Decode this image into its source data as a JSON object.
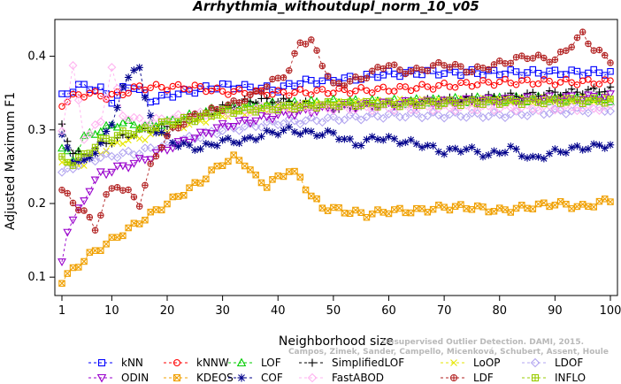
{
  "chart_data": {
    "type": "scatter",
    "title": "Arrhythmia_withoutdupl_norm_10_v05",
    "xlabel": "Neighborhood size",
    "ylabel": "Adjusted Maximum F1",
    "xlim": [
      1,
      100
    ],
    "ylim": [
      0.075,
      0.45
    ],
    "x_ticks": [
      1,
      10,
      20,
      30,
      40,
      50,
      60,
      70,
      80,
      90,
      100
    ],
    "y_ticks": [
      0.1,
      0.2,
      0.3,
      0.4
    ],
    "grid": false,
    "legend_position": "bottom",
    "series": [
      {
        "name": "kNN",
        "color": "#0000ff",
        "marker": "square",
        "anchors": [
          [
            1,
            0.345
          ],
          [
            2,
            0.35
          ],
          [
            4,
            0.36
          ],
          [
            8,
            0.355
          ],
          [
            10,
            0.34
          ],
          [
            12,
            0.355
          ],
          [
            14,
            0.36
          ],
          [
            17,
            0.34
          ],
          [
            22,
            0.35
          ],
          [
            30,
            0.36
          ],
          [
            40,
            0.355
          ],
          [
            44,
            0.365
          ],
          [
            54,
            0.37
          ],
          [
            58,
            0.375
          ],
          [
            66,
            0.378
          ],
          [
            80,
            0.378
          ],
          [
            100,
            0.378
          ]
        ]
      },
      {
        "name": "kNNW",
        "color": "#ff0000",
        "marker": "circle",
        "anchors": [
          [
            1,
            0.335
          ],
          [
            3,
            0.345
          ],
          [
            6,
            0.35
          ],
          [
            9,
            0.345
          ],
          [
            12,
            0.35
          ],
          [
            15,
            0.358
          ],
          [
            25,
            0.358
          ],
          [
            30,
            0.352
          ],
          [
            40,
            0.35
          ],
          [
            60,
            0.355
          ],
          [
            70,
            0.36
          ],
          [
            80,
            0.365
          ],
          [
            100,
            0.365
          ]
        ]
      },
      {
        "name": "LOF",
        "color": "#00cc00",
        "marker": "triangle-up",
        "anchors": [
          [
            1,
            0.275
          ],
          [
            3,
            0.26
          ],
          [
            5,
            0.29
          ],
          [
            8,
            0.3
          ],
          [
            12,
            0.31
          ],
          [
            16,
            0.305
          ],
          [
            20,
            0.31
          ],
          [
            25,
            0.32
          ],
          [
            30,
            0.33
          ],
          [
            40,
            0.335
          ],
          [
            50,
            0.338
          ],
          [
            60,
            0.338
          ],
          [
            80,
            0.342
          ],
          [
            100,
            0.342
          ]
        ]
      },
      {
        "name": "SimplifiedLOF",
        "color": "#000000",
        "marker": "plus",
        "anchors": [
          [
            1,
            0.305
          ],
          [
            3,
            0.27
          ],
          [
            5,
            0.265
          ],
          [
            8,
            0.28
          ],
          [
            12,
            0.29
          ],
          [
            16,
            0.3
          ],
          [
            20,
            0.305
          ],
          [
            25,
            0.315
          ],
          [
            30,
            0.33
          ],
          [
            35,
            0.34
          ],
          [
            40,
            0.34
          ],
          [
            50,
            0.33
          ],
          [
            60,
            0.335
          ],
          [
            70,
            0.34
          ],
          [
            80,
            0.345
          ],
          [
            90,
            0.35
          ],
          [
            100,
            0.355
          ]
        ]
      },
      {
        "name": "LoOP",
        "color": "#e6e600",
        "marker": "cross",
        "anchors": [
          [
            1,
            0.26
          ],
          [
            3,
            0.25
          ],
          [
            5,
            0.255
          ],
          [
            8,
            0.27
          ],
          [
            12,
            0.285
          ],
          [
            16,
            0.29
          ],
          [
            20,
            0.3
          ],
          [
            25,
            0.31
          ],
          [
            30,
            0.32
          ],
          [
            40,
            0.33
          ],
          [
            50,
            0.335
          ],
          [
            60,
            0.338
          ],
          [
            80,
            0.34
          ],
          [
            100,
            0.342
          ]
        ]
      },
      {
        "name": "LDOF",
        "color": "#b3a6f0",
        "marker": "diamond",
        "anchors": [
          [
            1,
            0.24
          ],
          [
            3,
            0.25
          ],
          [
            6,
            0.26
          ],
          [
            10,
            0.265
          ],
          [
            15,
            0.27
          ],
          [
            20,
            0.28
          ],
          [
            25,
            0.29
          ],
          [
            30,
            0.3
          ],
          [
            40,
            0.31
          ],
          [
            50,
            0.315
          ],
          [
            60,
            0.32
          ],
          [
            70,
            0.32
          ],
          [
            80,
            0.32
          ],
          [
            90,
            0.325
          ],
          [
            100,
            0.328
          ]
        ]
      },
      {
        "name": "ODIN",
        "color": "#9900cc",
        "marker": "triangle-down",
        "anchors": [
          [
            1,
            0.12
          ],
          [
            2,
            0.165
          ],
          [
            4,
            0.19
          ],
          [
            6,
            0.22
          ],
          [
            8,
            0.24
          ],
          [
            12,
            0.25
          ],
          [
            16,
            0.26
          ],
          [
            20,
            0.275
          ],
          [
            25,
            0.29
          ],
          [
            30,
            0.305
          ],
          [
            40,
            0.32
          ],
          [
            50,
            0.33
          ],
          [
            60,
            0.335
          ],
          [
            80,
            0.34
          ],
          [
            100,
            0.345
          ]
        ]
      },
      {
        "name": "KDEOS",
        "color": "#f0a000",
        "marker": "square-x",
        "anchors": [
          [
            1,
            0.095
          ],
          [
            3,
            0.11
          ],
          [
            6,
            0.13
          ],
          [
            10,
            0.15
          ],
          [
            14,
            0.17
          ],
          [
            18,
            0.19
          ],
          [
            22,
            0.21
          ],
          [
            26,
            0.23
          ],
          [
            30,
            0.255
          ],
          [
            32,
            0.262
          ],
          [
            34,
            0.255
          ],
          [
            36,
            0.235
          ],
          [
            38,
            0.225
          ],
          [
            40,
            0.235
          ],
          [
            42,
            0.245
          ],
          [
            44,
            0.235
          ],
          [
            46,
            0.21
          ],
          [
            48,
            0.195
          ],
          [
            52,
            0.19
          ],
          [
            56,
            0.185
          ],
          [
            60,
            0.19
          ],
          [
            65,
            0.19
          ],
          [
            70,
            0.195
          ],
          [
            75,
            0.195
          ],
          [
            80,
            0.19
          ],
          [
            85,
            0.195
          ],
          [
            90,
            0.2
          ],
          [
            95,
            0.195
          ],
          [
            100,
            0.205
          ]
        ]
      },
      {
        "name": "COF",
        "color": "#00008b",
        "marker": "star",
        "anchors": [
          [
            1,
            0.29
          ],
          [
            3,
            0.26
          ],
          [
            5,
            0.255
          ],
          [
            8,
            0.28
          ],
          [
            10,
            0.31
          ],
          [
            12,
            0.355
          ],
          [
            14,
            0.385
          ],
          [
            15,
            0.385
          ],
          [
            16,
            0.34
          ],
          [
            18,
            0.3
          ],
          [
            22,
            0.28
          ],
          [
            26,
            0.275
          ],
          [
            30,
            0.285
          ],
          [
            34,
            0.285
          ],
          [
            38,
            0.295
          ],
          [
            42,
            0.3
          ],
          [
            46,
            0.295
          ],
          [
            50,
            0.295
          ],
          [
            54,
            0.28
          ],
          [
            58,
            0.29
          ],
          [
            62,
            0.285
          ],
          [
            66,
            0.28
          ],
          [
            70,
            0.27
          ],
          [
            74,
            0.275
          ],
          [
            78,
            0.265
          ],
          [
            82,
            0.275
          ],
          [
            86,
            0.26
          ],
          [
            90,
            0.27
          ],
          [
            94,
            0.275
          ],
          [
            98,
            0.278
          ],
          [
            100,
            0.28
          ]
        ]
      },
      {
        "name": "FastABOD",
        "color": "#ffb3f0",
        "marker": "diamond",
        "anchors": [
          [
            1,
            0.3
          ],
          [
            3,
            0.385
          ],
          [
            5,
            0.29
          ],
          [
            8,
            0.31
          ],
          [
            10,
            0.385
          ],
          [
            12,
            0.32
          ],
          [
            16,
            0.31
          ],
          [
            20,
            0.315
          ],
          [
            25,
            0.32
          ],
          [
            30,
            0.325
          ],
          [
            40,
            0.33
          ],
          [
            50,
            0.33
          ],
          [
            60,
            0.33
          ],
          [
            70,
            0.33
          ],
          [
            80,
            0.33
          ],
          [
            90,
            0.33
          ],
          [
            100,
            0.33
          ]
        ]
      },
      {
        "name": "LDF",
        "color": "#b22222",
        "marker": "circle-plus",
        "anchors": [
          [
            1,
            0.22
          ],
          [
            3,
            0.2
          ],
          [
            5,
            0.19
          ],
          [
            7,
            0.165
          ],
          [
            9,
            0.21
          ],
          [
            11,
            0.225
          ],
          [
            13,
            0.215
          ],
          [
            15,
            0.2
          ],
          [
            17,
            0.25
          ],
          [
            19,
            0.28
          ],
          [
            21,
            0.3
          ],
          [
            25,
            0.32
          ],
          [
            30,
            0.33
          ],
          [
            35,
            0.345
          ],
          [
            40,
            0.37
          ],
          [
            42,
            0.38
          ],
          [
            44,
            0.42
          ],
          [
            46,
            0.42
          ],
          [
            48,
            0.39
          ],
          [
            50,
            0.36
          ],
          [
            55,
            0.37
          ],
          [
            60,
            0.39
          ],
          [
            62,
            0.38
          ],
          [
            65,
            0.38
          ],
          [
            70,
            0.39
          ],
          [
            75,
            0.38
          ],
          [
            80,
            0.39
          ],
          [
            85,
            0.4
          ],
          [
            90,
            0.395
          ],
          [
            95,
            0.43
          ],
          [
            97,
            0.41
          ],
          [
            100,
            0.395
          ]
        ]
      },
      {
        "name": "INFLO",
        "color": "#99cc00",
        "marker": "square-plus",
        "anchors": [
          [
            1,
            0.26
          ],
          [
            3,
            0.255
          ],
          [
            5,
            0.265
          ],
          [
            8,
            0.285
          ],
          [
            12,
            0.295
          ],
          [
            16,
            0.3
          ],
          [
            20,
            0.31
          ],
          [
            25,
            0.315
          ],
          [
            30,
            0.325
          ],
          [
            40,
            0.33
          ],
          [
            50,
            0.335
          ],
          [
            60,
            0.335
          ],
          [
            80,
            0.338
          ],
          [
            100,
            0.34
          ]
        ]
      }
    ],
    "legend": [
      [
        "kNN",
        "kNNW",
        "LOF",
        "SimplifiedLOF",
        "LoOP",
        "LDOF"
      ],
      [
        "ODIN",
        "KDEOS",
        "COF",
        "FastABOD",
        "LDF",
        "INFLO"
      ]
    ]
  },
  "watermark": {
    "line1": "Campos, Zimek, Sander, Campello, Micenková, Schubert, Assent, Houle",
    "line2": "Unsupervised Outlier Detection. DAMI, 2015."
  }
}
